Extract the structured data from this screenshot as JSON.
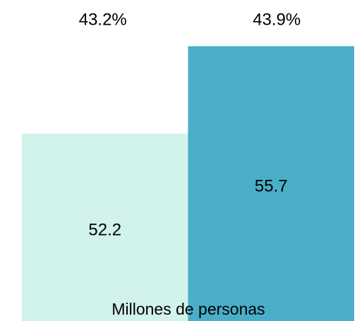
{
  "chart_data": {
    "type": "bar",
    "categories": [
      null,
      null
    ],
    "values": [
      52.2,
      55.7
    ],
    "colors": [
      "#d2f2ec",
      "#4aaec8"
    ],
    "ylim": [
      44.7,
      57.55
    ],
    "annotations": [
      {
        "value": 43.2,
        "label": "43.2%"
      },
      {
        "value": 43.9,
        "label": "43.9%"
      }
    ],
    "x_label": "Millones de personas"
  }
}
